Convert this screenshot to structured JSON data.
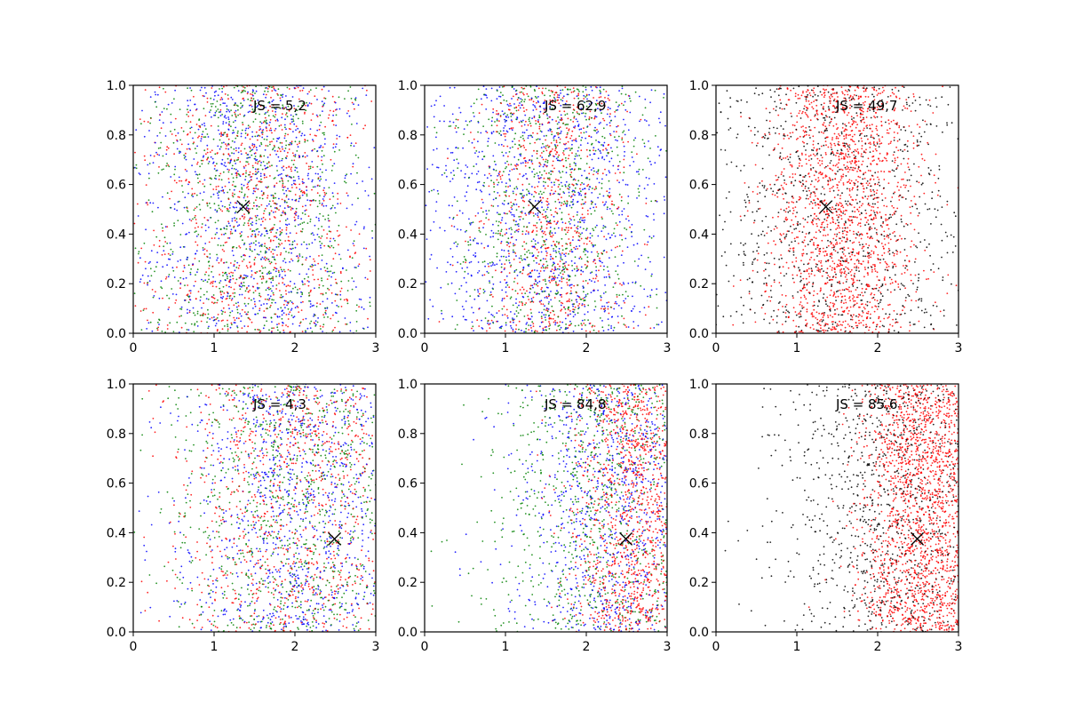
{
  "chart_data": [
    {
      "type": "scatter",
      "xlim": [
        0,
        3
      ],
      "ylim": [
        0,
        1
      ],
      "xticks": [
        "0",
        "1",
        "2",
        "3"
      ],
      "yticks": [
        "0.0",
        "0.2",
        "0.4",
        "0.6",
        "0.8",
        "1.0"
      ],
      "annotation": "JS = 5,2",
      "marker": {
        "x": 1.36,
        "y": 0.51,
        "symbol": "x"
      },
      "series": [
        {
          "color": "#0000ff",
          "distribution": {
            "x_mean": 1.5,
            "x_sd": 0.75,
            "y_mode": "uniform",
            "share": 0.34
          }
        },
        {
          "color": "#008000",
          "distribution": {
            "x_mean": 1.5,
            "x_sd": 0.75,
            "y_mode": "uniform",
            "share": 0.33
          }
        },
        {
          "color": "#ff0000",
          "distribution": {
            "x_mean": 1.5,
            "x_sd": 0.75,
            "y_mode": "uniform",
            "share": 0.33
          }
        }
      ],
      "grid": false,
      "legend": "none"
    },
    {
      "type": "scatter",
      "xlim": [
        0,
        3
      ],
      "ylim": [
        0,
        1
      ],
      "xticks": [
        "0",
        "1",
        "2",
        "3"
      ],
      "yticks": [
        "0.0",
        "0.2",
        "0.4",
        "0.6",
        "0.8",
        "1.0"
      ],
      "annotation": "JS = 62,9",
      "marker": {
        "x": 1.36,
        "y": 0.51,
        "symbol": "x"
      },
      "series": [
        {
          "color": "#0000ff",
          "distribution": {
            "x_mean": 1.5,
            "x_sd": 0.9,
            "y_mode": "uniform",
            "share": 0.4
          }
        },
        {
          "color": "#008000",
          "distribution": {
            "x_mean": 1.6,
            "x_sd": 0.6,
            "y_mode": "uniform",
            "share": 0.3
          }
        },
        {
          "color": "#ff0000",
          "distribution": {
            "x_mean": 1.6,
            "x_sd": 0.45,
            "y_mode": "uniform",
            "share": 0.3
          }
        }
      ],
      "grid": false,
      "legend": "none"
    },
    {
      "type": "scatter",
      "xlim": [
        0,
        3
      ],
      "ylim": [
        0,
        1
      ],
      "xticks": [
        "0",
        "1",
        "2",
        "3"
      ],
      "yticks": [
        "0.0",
        "0.2",
        "0.4",
        "0.6",
        "0.8",
        "1.0"
      ],
      "annotation": "JS = 49,7",
      "marker": {
        "x": 1.36,
        "y": 0.51,
        "symbol": "x"
      },
      "series": [
        {
          "color": "#000000",
          "distribution": {
            "x_mean": 1.5,
            "x_sd": 0.9,
            "y_mode": "uniform",
            "share": 0.35
          }
        },
        {
          "color": "#ff0000",
          "distribution": {
            "x_mean": 1.6,
            "x_sd": 0.45,
            "y_mode": "uniform",
            "share": 0.65
          }
        }
      ],
      "grid": false,
      "legend": "none"
    },
    {
      "type": "scatter",
      "xlim": [
        0,
        3
      ],
      "ylim": [
        0,
        1
      ],
      "xticks": [
        "0",
        "1",
        "2",
        "3"
      ],
      "yticks": [
        "0.0",
        "0.2",
        "0.4",
        "0.6",
        "0.8",
        "1.0"
      ],
      "annotation": "JS = 4,3",
      "marker": {
        "x": 2.49,
        "y": 0.375,
        "symbol": "x"
      },
      "series": [
        {
          "color": "#0000ff",
          "distribution": {
            "x_mean": 2.0,
            "x_sd": 0.75,
            "y_mode": "uniform",
            "share": 0.34
          }
        },
        {
          "color": "#008000",
          "distribution": {
            "x_mean": 2.0,
            "x_sd": 0.75,
            "y_mode": "uniform",
            "share": 0.33
          }
        },
        {
          "color": "#ff0000",
          "distribution": {
            "x_mean": 2.0,
            "x_sd": 0.75,
            "y_mode": "uniform",
            "share": 0.33
          }
        }
      ],
      "grid": false,
      "legend": "none"
    },
    {
      "type": "scatter",
      "xlim": [
        0,
        3
      ],
      "ylim": [
        0,
        1
      ],
      "xticks": [
        "0",
        "1",
        "2",
        "3"
      ],
      "yticks": [
        "0.0",
        "0.2",
        "0.4",
        "0.6",
        "0.8",
        "1.0"
      ],
      "annotation": "JS = 84,8",
      "marker": {
        "x": 2.49,
        "y": 0.375,
        "symbol": "x"
      },
      "series": [
        {
          "color": "#0000ff",
          "distribution": {
            "x_mean": 2.3,
            "x_sd": 0.6,
            "y_mode": "uniform",
            "share": 0.3
          }
        },
        {
          "color": "#008000",
          "distribution": {
            "x_mean": 2.2,
            "x_sd": 0.7,
            "y_mode": "uniform",
            "share": 0.3
          }
        },
        {
          "color": "#ff0000",
          "distribution": {
            "x_mean": 2.6,
            "x_sd": 0.4,
            "y_mode": "uniform",
            "share": 0.4
          }
        }
      ],
      "grid": false,
      "legend": "none"
    },
    {
      "type": "scatter",
      "xlim": [
        0,
        3
      ],
      "ylim": [
        0,
        1
      ],
      "xticks": [
        "0",
        "1",
        "2",
        "3"
      ],
      "yticks": [
        "0.0",
        "0.2",
        "0.4",
        "0.6",
        "0.8",
        "1.0"
      ],
      "annotation": "JS = 85,6",
      "marker": {
        "x": 2.49,
        "y": 0.375,
        "symbol": "x"
      },
      "series": [
        {
          "color": "#000000",
          "distribution": {
            "x_mean": 2.1,
            "x_sd": 0.7,
            "y_mode": "uniform",
            "share": 0.35
          }
        },
        {
          "color": "#ff0000",
          "distribution": {
            "x_mean": 2.6,
            "x_sd": 0.4,
            "y_mode": "uniform",
            "share": 0.65
          }
        }
      ],
      "grid": false,
      "legend": "none"
    }
  ]
}
